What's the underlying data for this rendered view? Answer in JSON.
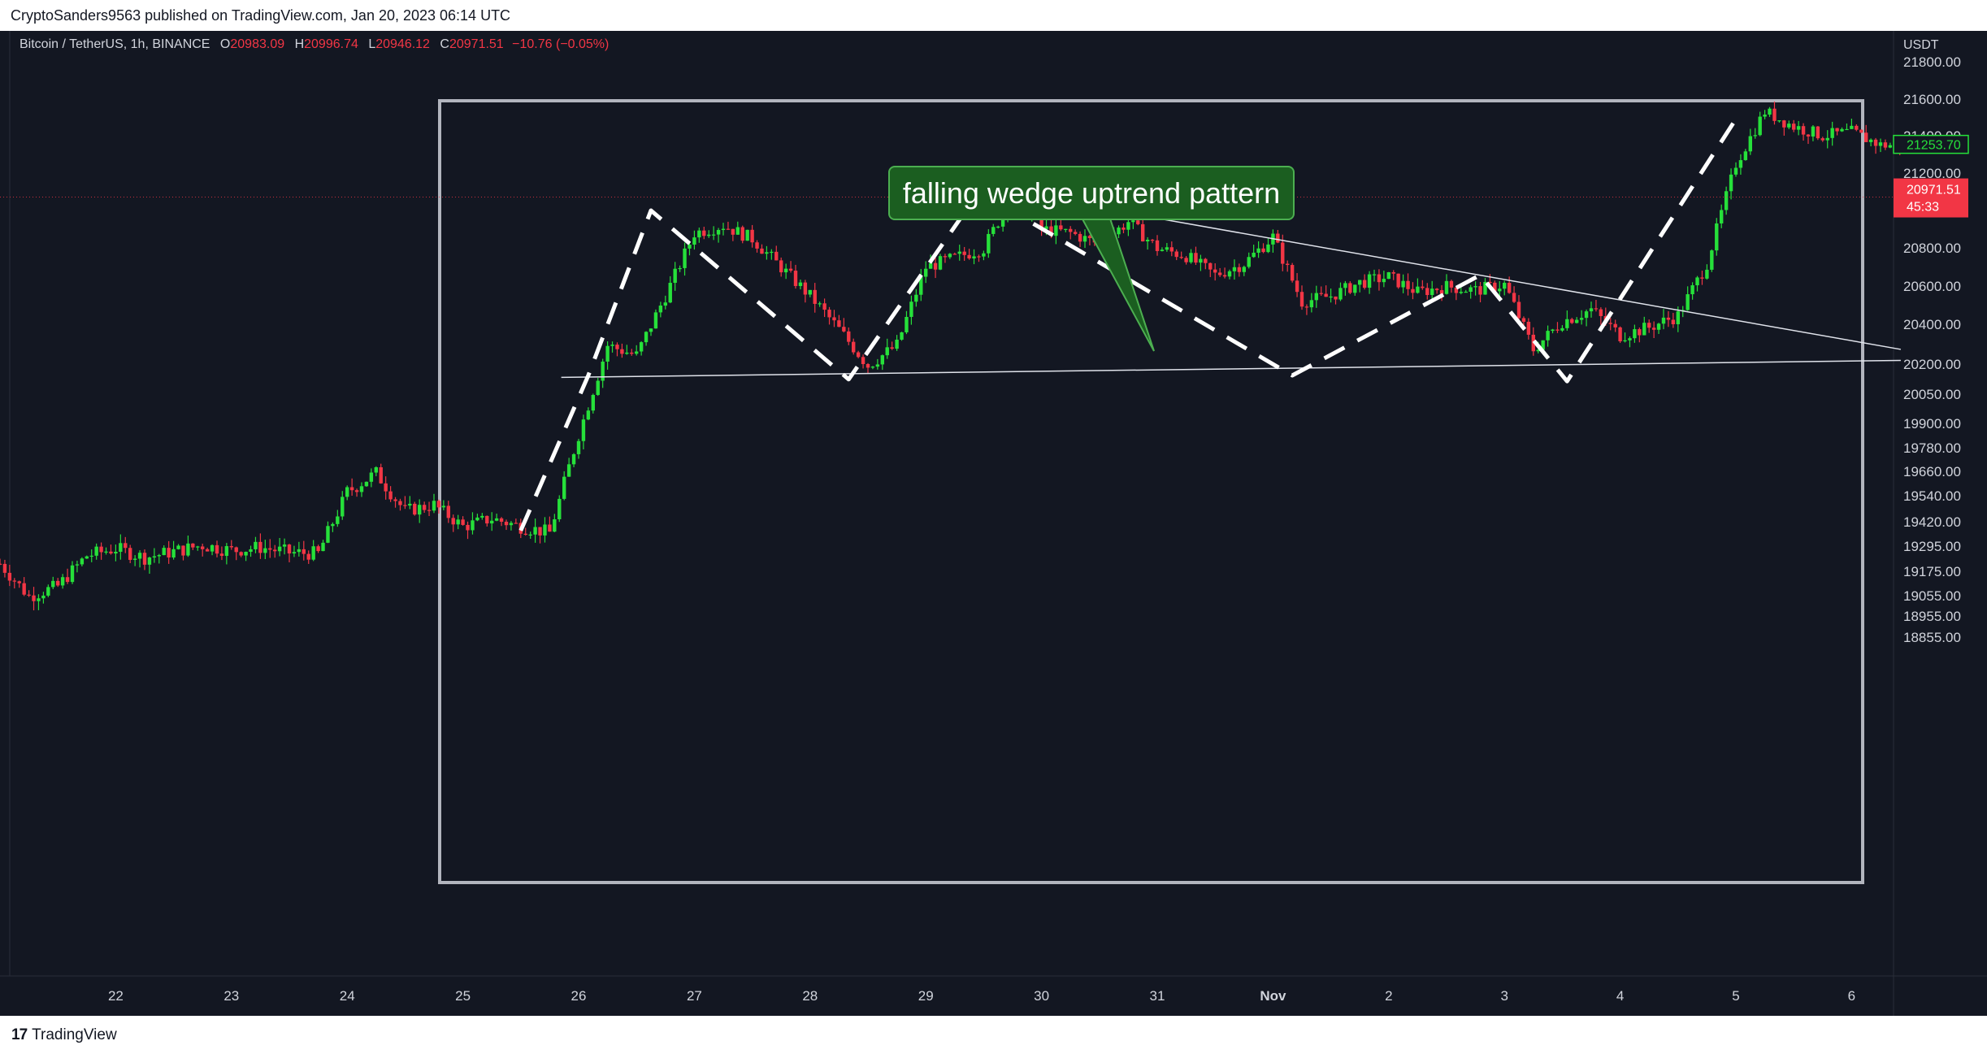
{
  "header": {
    "publisher_text": "CryptoSanders9563 published on TradingView.com, Jan 20, 2023 06:14 UTC"
  },
  "legend": {
    "symbol": "Bitcoin / TetherUS, 1h, BINANCE",
    "open_label": "O",
    "open": "20983.09",
    "high_label": "H",
    "high": "20996.74",
    "low_label": "L",
    "low": "20946.12",
    "close_label": "C",
    "close": "20971.51",
    "change": "−10.76 (−0.05%)"
  },
  "footer": {
    "brand": "TradingView"
  },
  "colors": {
    "background": "#131722",
    "up": "#26e03a",
    "down": "#f23645",
    "text": "#d1d4dc",
    "frame": "#b2b5be"
  },
  "chart_data": {
    "type": "candlestick",
    "title": "falling wedge uptrend pattern",
    "symbol": "Bitcoin / TetherUS",
    "interval": "1h",
    "exchange": "BINANCE",
    "currency": "USDT",
    "y_ticks": [
      "21800.00",
      "21600.00",
      "21400.00",
      "21200.00",
      "21000.00",
      "20800.00",
      "20600.00",
      "20400.00",
      "20200.00",
      "20050.00",
      "19900.00",
      "19780.00",
      "19660.00",
      "19540.00",
      "19420.00",
      "19295.00",
      "19175.00",
      "19055.00",
      "18955.00",
      "18855.00"
    ],
    "x_ticks": [
      "22",
      "23",
      "24",
      "25",
      "26",
      "27",
      "28",
      "29",
      "30",
      "31",
      "Nov",
      "2",
      "3",
      "4",
      "5",
      "6"
    ],
    "last_price": "20971.51",
    "countdown": "45:33",
    "marker_price": "21253.70",
    "zigzag_prices": [
      19280,
      20050,
      20900,
      20030,
      21000,
      20050,
      20560,
      20020,
      21430
    ],
    "close_path": [
      [
        "Oct 21 00:00",
        19120
      ],
      [
        "Oct 21 06:00",
        18960
      ],
      [
        "Oct 21 12:00",
        19010
      ],
      [
        "Oct 21 18:00",
        19160
      ],
      [
        "Oct 22 00:00",
        19195
      ],
      [
        "Oct 22 06:00",
        19150
      ],
      [
        "Oct 22 12:00",
        19180
      ],
      [
        "Oct 22 18:00",
        19210
      ],
      [
        "Oct 23 00:00",
        19185
      ],
      [
        "Oct 23 06:00",
        19200
      ],
      [
        "Oct 23 12:00",
        19175
      ],
      [
        "Oct 23 18:00",
        19170
      ],
      [
        "Oct 24 00:00",
        19470
      ],
      [
        "Oct 24 06:00",
        19560
      ],
      [
        "Oct 24 12:00",
        19380
      ],
      [
        "Oct 24 18:00",
        19410
      ],
      [
        "Oct 25 00:00",
        19300
      ],
      [
        "Oct 25 06:00",
        19340
      ],
      [
        "Oct 25 12:00",
        19300
      ],
      [
        "Oct 25 18:00",
        19270
      ],
      [
        "Oct 26 00:00",
        19750
      ],
      [
        "Oct 26 06:00",
        20200
      ],
      [
        "Oct 26 12:00",
        20150
      ],
      [
        "Oct 26 18:00",
        20450
      ],
      [
        "Oct 27 00:00",
        20780
      ],
      [
        "Oct 27 06:00",
        20820
      ],
      [
        "Oct 27 12:00",
        20750
      ],
      [
        "Oct 27 18:00",
        20600
      ],
      [
        "Oct 28 00:00",
        20450
      ],
      [
        "Oct 28 06:00",
        20280
      ],
      [
        "Oct 28 12:00",
        20100
      ],
      [
        "Oct 28 18:00",
        20200
      ],
      [
        "Oct 29 00:00",
        20600
      ],
      [
        "Oct 29 06:00",
        20650
      ],
      [
        "Oct 29 12:00",
        20700
      ],
      [
        "Oct 29 18:00",
        20980
      ],
      [
        "Oct 30 00:00",
        20800
      ],
      [
        "Oct 30 06:00",
        20780
      ],
      [
        "Oct 30 12:00",
        20720
      ],
      [
        "Oct 30 18:00",
        20840
      ],
      [
        "Oct 31 00:00",
        20700
      ],
      [
        "Oct 31 06:00",
        20660
      ],
      [
        "Oct 31 12:00",
        20560
      ],
      [
        "Oct 31 18:00",
        20620
      ],
      [
        "Nov 1 00:00",
        20760
      ],
      [
        "Nov 1 06:00",
        20420
      ],
      [
        "Nov 1 12:00",
        20450
      ],
      [
        "Nov 1 18:00",
        20520
      ],
      [
        "Nov 2 00:00",
        20550
      ],
      [
        "Nov 2 06:00",
        20470
      ],
      [
        "Nov 2 12:00",
        20500
      ],
      [
        "Nov 2 18:00",
        20480
      ],
      [
        "Nov 3 00:00",
        20510
      ],
      [
        "Nov 3 06:00",
        20180
      ],
      [
        "Nov 3 12:00",
        20320
      ],
      [
        "Nov 3 18:00",
        20380
      ],
      [
        "Nov 4 00:00",
        20250
      ],
      [
        "Nov 4 06:00",
        20290
      ],
      [
        "Nov 4 12:00",
        20350
      ],
      [
        "Nov 4 18:00",
        20620
      ],
      [
        "Nov 5 00:00",
        21150
      ],
      [
        "Nov 5 06:00",
        21430
      ],
      [
        "Nov 5 12:00",
        21350
      ],
      [
        "Nov 5 18:00",
        21300
      ],
      [
        "Nov 6 00:00",
        21320
      ],
      [
        "Nov 6 06:00",
        21250
      ]
    ]
  }
}
